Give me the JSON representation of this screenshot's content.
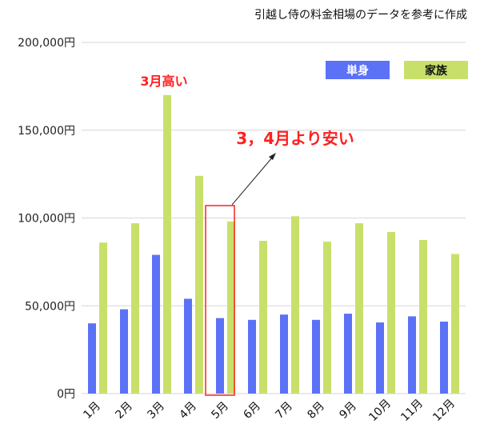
{
  "caption": "引越し侍の料金相場のデータを参考に作成",
  "colors": {
    "single": "#5b72f7",
    "family": "#c8e06a",
    "annotation": "#ff2020",
    "grid": "#d6d6d6"
  },
  "annotations": {
    "march_high": "3月高い",
    "april_cheap": "3，4月より安い"
  },
  "chart_data": {
    "type": "bar",
    "title": "",
    "xlabel": "",
    "ylabel": "",
    "categories": [
      "1月",
      "2月",
      "3月",
      "4月",
      "5月",
      "6月",
      "7月",
      "8月",
      "9月",
      "10月",
      "11月",
      "12月"
    ],
    "series": [
      {
        "name": "単身",
        "values": [
          40000,
          48000,
          79000,
          54000,
          43000,
          42000,
          45000,
          42000,
          45500,
          40500,
          44000,
          41000
        ]
      },
      {
        "name": "家族",
        "values": [
          86000,
          97000,
          170000,
          124000,
          98000,
          87000,
          101000,
          86500,
          97000,
          92000,
          87500,
          79500
        ]
      }
    ],
    "ylim": [
      0,
      200000
    ],
    "yticks": [
      "0円",
      "50,000円",
      "100,000円",
      "150,000円",
      "200,000円"
    ],
    "grid": true,
    "legend": "top-right",
    "highlight_category": "5月"
  }
}
